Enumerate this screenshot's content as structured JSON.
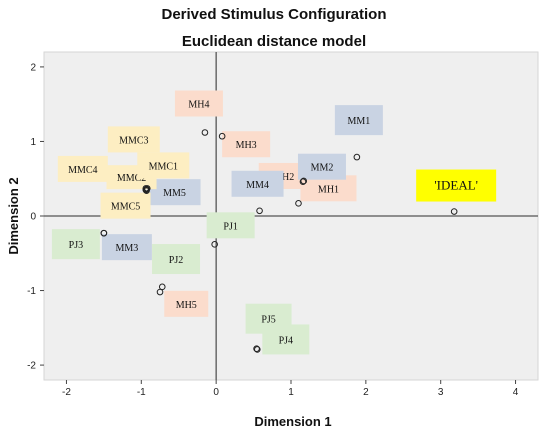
{
  "chart_data": {
    "type": "scatter",
    "title": "Derived Stimulus Configuration",
    "subtitle": "Euclidean distance model",
    "xlabel": "Dimension 1",
    "ylabel": "Dimension 2",
    "xlim": [
      -2.3,
      4.3
    ],
    "ylim": [
      -2.2,
      2.2
    ],
    "xticks": [
      -2,
      -1,
      0,
      1,
      2,
      3,
      4
    ],
    "yticks": [
      -2,
      -1,
      0,
      1,
      2
    ],
    "grid": false,
    "reference_lines": {
      "x": 0,
      "y": 0
    },
    "group_colors": {
      "MH": "#fbdccc",
      "MM": "#c9d3e3",
      "MMC": "#fdeec2",
      "PJ": "#d9ecd0",
      "IDEAL": "#ffff00"
    },
    "points": [
      {
        "label": "MH4",
        "x": -0.15,
        "y": 1.12,
        "group": "MH"
      },
      {
        "label": "MH3",
        "x": 0.08,
        "y": 1.07,
        "group": "MH"
      },
      {
        "label": "MH2",
        "x": 1.17,
        "y": 0.47,
        "group": "MH"
      },
      {
        "label": "MH1",
        "x": 1.1,
        "y": 0.17,
        "group": "MH"
      },
      {
        "label": "MH5",
        "x": -0.72,
        "y": -0.95,
        "group": "MH"
      },
      {
        "label": "MM1",
        "x": 1.88,
        "y": 0.79,
        "group": "MM"
      },
      {
        "label": "MM2",
        "x": 1.16,
        "y": 0.46,
        "group": "MM"
      },
      {
        "label": "MM4",
        "x": 0.58,
        "y": 0.07,
        "group": "MM"
      },
      {
        "label": "MM5",
        "x": -0.93,
        "y": 0.36,
        "group": "MM"
      },
      {
        "label": "MM3",
        "x": -1.5,
        "y": -0.23,
        "group": "MM"
      },
      {
        "label": "MMC3",
        "x": -0.94,
        "y": 0.37,
        "group": "MMC"
      },
      {
        "label": "MMC2",
        "x": -0.93,
        "y": 0.36,
        "group": "MMC"
      },
      {
        "label": "MMC4",
        "x": -0.94,
        "y": 0.35,
        "group": "MMC"
      },
      {
        "label": "MMC1",
        "x": -0.92,
        "y": 0.37,
        "group": "MMC"
      },
      {
        "label": "MMC5",
        "x": -0.93,
        "y": 0.34,
        "group": "MMC"
      },
      {
        "label": "PJ1",
        "x": -0.02,
        "y": -0.38,
        "group": "PJ"
      },
      {
        "label": "PJ3",
        "x": -1.5,
        "y": -0.23,
        "group": "PJ"
      },
      {
        "label": "PJ2",
        "x": -0.75,
        "y": -1.02,
        "group": "PJ"
      },
      {
        "label": "PJ5",
        "x": 0.54,
        "y": -1.78,
        "group": "PJ"
      },
      {
        "label": "PJ4",
        "x": 0.55,
        "y": -1.79,
        "group": "PJ"
      },
      {
        "label": "'IDEAL'",
        "x": 3.18,
        "y": 0.06,
        "group": "IDEAL"
      }
    ]
  }
}
